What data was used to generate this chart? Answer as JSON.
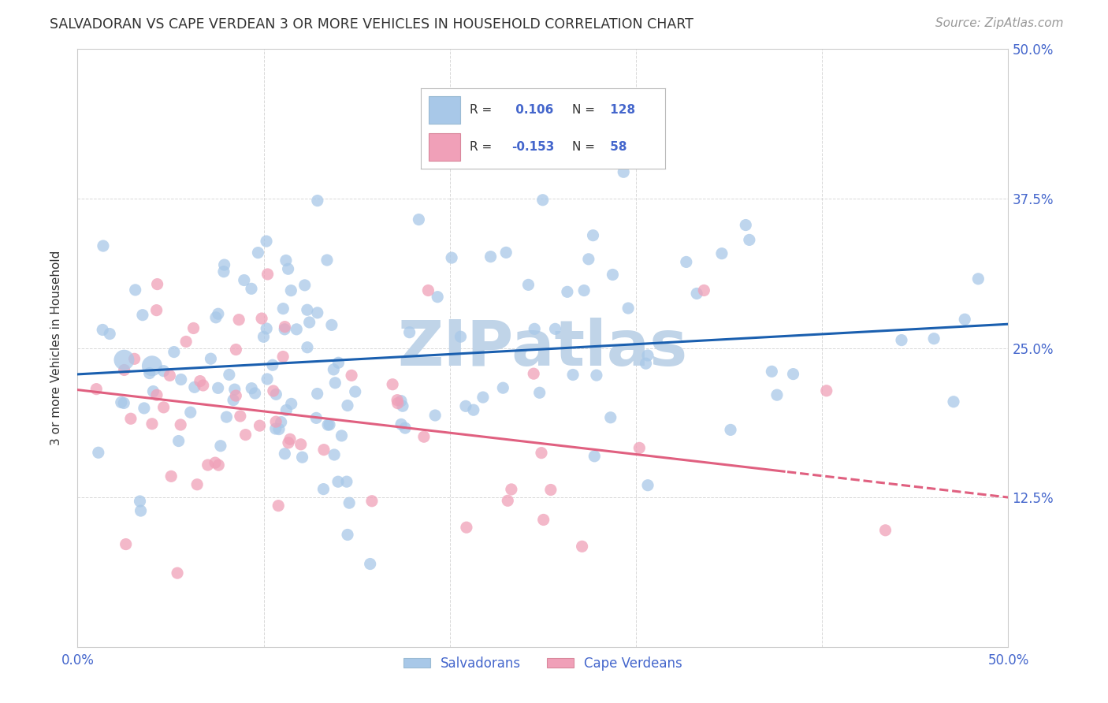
{
  "title": "SALVADORAN VS CAPE VERDEAN 3 OR MORE VEHICLES IN HOUSEHOLD CORRELATION CHART",
  "source": "Source: ZipAtlas.com",
  "ylabel": "3 or more Vehicles in Household",
  "yticks": [
    0.0,
    0.125,
    0.25,
    0.375,
    0.5
  ],
  "ytick_labels_right": [
    "",
    "12.5%",
    "25.0%",
    "37.5%",
    "50.0%"
  ],
  "xticks": [
    0.0,
    0.1,
    0.2,
    0.3,
    0.4,
    0.5
  ],
  "xtick_labels": [
    "0.0%",
    "",
    "",
    "",
    "",
    "50.0%"
  ],
  "xlim": [
    0.0,
    0.5
  ],
  "ylim": [
    0.0,
    0.5
  ],
  "salvadoran_R": 0.106,
  "salvadoran_N": 128,
  "capeverdean_R": -0.153,
  "capeverdean_N": 58,
  "legend_label_salvadoran": "Salvadorans",
  "legend_label_capeverdean": "Cape Verdeans",
  "color_salvadoran": "#a8c8e8",
  "color_capeverdean": "#f0a0b8",
  "line_color_salvadoran": "#1a5faf",
  "line_color_capeverdean": "#e06080",
  "background_color": "#ffffff",
  "grid_color": "#c8c8c8",
  "title_color": "#333333",
  "axis_label_color": "#4466cc",
  "watermark_text": "ZIPatlas",
  "watermark_color": "#c0d4e8",
  "sal_trendline_y0": 0.228,
  "sal_trendline_y1": 0.27,
  "cape_trendline_y0": 0.215,
  "cape_trendline_y1": 0.125,
  "cape_trendline_solid_end": 0.38
}
